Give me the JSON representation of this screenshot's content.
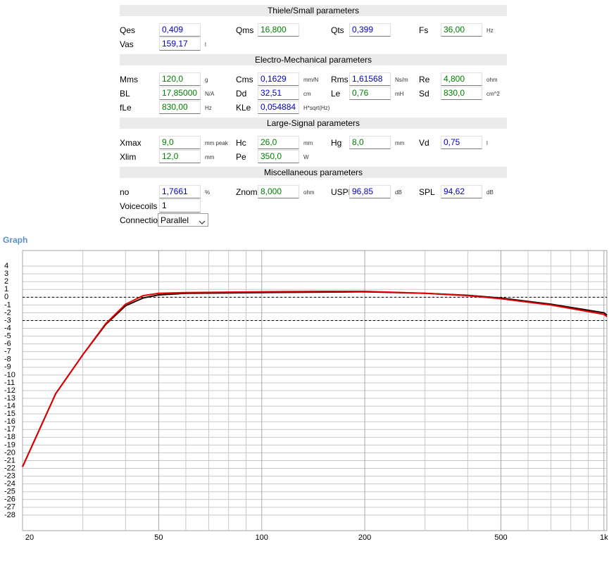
{
  "panel": {
    "sections": [
      {
        "title": "Thiele/Small parameters",
        "rows": [
          [
            {
              "label": "Qes",
              "value": "0,409",
              "color": "#0000c8"
            },
            {
              "label": "Qms",
              "value": "16,800",
              "color": "#008000"
            },
            {
              "label": "Qts",
              "value": "0,399",
              "color": "#0000c8"
            },
            {
              "label": "Fs",
              "value": "36,00",
              "unit": "Hz",
              "color": "#008000"
            }
          ],
          [
            {
              "label": "Vas",
              "value": "159,17",
              "unit": "l",
              "color": "#0000c8"
            }
          ]
        ]
      },
      {
        "title": "Electro-Mechanical parameters",
        "rows": [
          [
            {
              "label": "Mms",
              "value": "120,0",
              "unit": "g",
              "color": "#008000"
            },
            {
              "label": "Cms",
              "value": "0,1629",
              "unit": "mm/N",
              "color": "#0000c8"
            },
            {
              "label": "Rms",
              "value": "1,61568",
              "unit": "Ns/m",
              "color": "#0000c8"
            },
            {
              "label": "Re",
              "value": "4,800",
              "unit": "ohm",
              "color": "#008000"
            }
          ],
          [
            {
              "label": "BL",
              "value": "17,85000",
              "unit": "N/A",
              "color": "#008000"
            },
            {
              "label": "Dd",
              "value": "32,51",
              "unit": "cm",
              "color": "#0000c8"
            },
            {
              "label": "Le",
              "value": "0,76",
              "unit": "mH",
              "color": "#008000"
            },
            {
              "label": "Sd",
              "value": "830,0",
              "unit": "cm^2",
              "color": "#008000"
            }
          ],
          [
            {
              "label": "fLe",
              "value": "830,00",
              "unit": "Hz",
              "color": "#008000"
            },
            {
              "label": "KLe",
              "value": "0,054884",
              "unit": "H*sqrt(Hz)",
              "color": "#0000c8"
            }
          ]
        ]
      },
      {
        "title": "Large-Signal parameters",
        "rows": [
          [
            {
              "label": "Xmax",
              "value": "9,0",
              "unit": "mm peak",
              "color": "#008000"
            },
            {
              "label": "Hc",
              "value": "26,0",
              "unit": "mm",
              "color": "#008000"
            },
            {
              "label": "Hg",
              "value": "8,0",
              "unit": "mm",
              "color": "#008000"
            },
            {
              "label": "Vd",
              "value": "0,75",
              "unit": "l",
              "color": "#0000c8"
            }
          ],
          [
            {
              "label": "Xlim",
              "value": "12,0",
              "unit": "mm",
              "color": "#008000"
            },
            {
              "label": "Pe",
              "value": "350,0",
              "unit": "W",
              "color": "#008000"
            }
          ]
        ]
      },
      {
        "title": "Miscellaneous parameters",
        "rows": [
          [
            {
              "label": "no",
              "value": "1,7661",
              "unit": "%",
              "color": "#0000c8"
            },
            {
              "label": "Znom",
              "value": "8,000",
              "unit": "ohm",
              "color": "#008000"
            },
            {
              "label": "USPL",
              "value": "96,85",
              "unit": "dB",
              "color": "#0000c8"
            },
            {
              "label": "SPL",
              "value": "94,62",
              "unit": "dB",
              "color": "#0000c8"
            }
          ],
          [
            {
              "label": "Voicecoils",
              "value": "1",
              "color": "#000000"
            }
          ],
          [
            {
              "label": "Connection",
              "value": "Parallel",
              "control": "select",
              "color": "#000000"
            }
          ]
        ]
      }
    ]
  },
  "chart_data": {
    "type": "line",
    "title": "Graph",
    "x": [
      20,
      25,
      30,
      35,
      40,
      45,
      50,
      60,
      80,
      100,
      150,
      200,
      300,
      400,
      500,
      700,
      1000,
      1020
    ],
    "series": [
      {
        "color": "#200000",
        "values": [
          -21.8,
          -12.4,
          -7.4,
          -3.5,
          -1.1,
          -0.1,
          0.3,
          0.5,
          0.55,
          0.6,
          0.65,
          0.7,
          0.5,
          0.25,
          -0.1,
          -0.9,
          -2.0,
          -2.3
        ]
      },
      {
        "color": "#e00000",
        "values": [
          -21.8,
          -12.4,
          -7.4,
          -3.4,
          -0.9,
          0.2,
          0.5,
          0.6,
          0.65,
          0.7,
          0.75,
          0.75,
          0.5,
          0.2,
          -0.2,
          -1.0,
          -2.2,
          -2.5
        ]
      }
    ],
    "xscale": "log",
    "xlim": [
      20,
      1020
    ],
    "ylim": [
      -30,
      6
    ],
    "xticks": [
      20,
      50,
      100,
      200,
      500,
      {
        "value": 1000,
        "label": "1k"
      }
    ],
    "xgrid_minor": [
      30,
      40,
      60,
      70,
      80,
      90,
      300,
      400,
      600,
      700,
      800,
      900
    ],
    "yticks": [
      -28,
      -27,
      -26,
      -25,
      -24,
      -23,
      -22,
      -21,
      -20,
      -19,
      -18,
      -17,
      -16,
      -15,
      -14,
      -13,
      -12,
      -11,
      -10,
      -9,
      -8,
      -7,
      -6,
      -5,
      -4,
      -3,
      -2,
      -1,
      0,
      1,
      2,
      3,
      4
    ],
    "ref_lines": [
      0,
      -3
    ],
    "grid": true
  }
}
